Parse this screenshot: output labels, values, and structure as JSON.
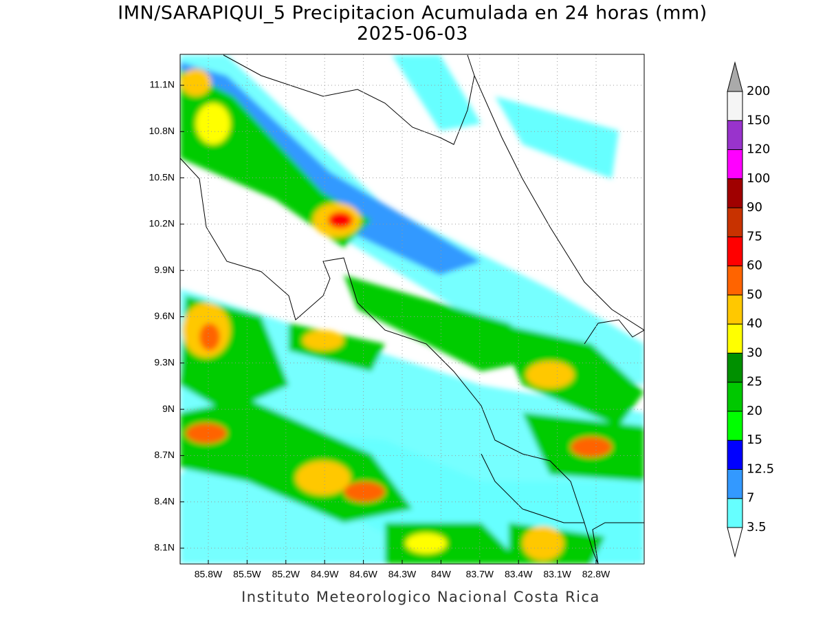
{
  "title": "IMN/SARAPIQUI_5 Precipitacion Acumulada en 24 horas (mm)",
  "subtitle": "2025-06-03",
  "footer": "Instituto Meteorologico Nacional Costa Rica",
  "map": {
    "lat_ticks": [
      "11.1N",
      "10.8N",
      "10.5N",
      "10.2N",
      "9.9N",
      "9.6N",
      "9.3N",
      "9N",
      "8.7N",
      "8.4N",
      "8.1N"
    ],
    "lon_ticks": [
      "85.8W",
      "85.5W",
      "85.2W",
      "84.9W",
      "84.6W",
      "84.3W",
      "84W",
      "83.7W",
      "83.4W",
      "83.1W",
      "82.8W"
    ]
  },
  "colorbar": {
    "levels": [
      3.5,
      7,
      12.5,
      15,
      20,
      25,
      30,
      40,
      50,
      60,
      75,
      90,
      100,
      120,
      150,
      200
    ],
    "colors": [
      "#ffffff",
      "#66ffff",
      "#3399ff",
      "#0000ff",
      "#00ff00",
      "#00c800",
      "#009000",
      "#ffff00",
      "#ffc800",
      "#ff6400",
      "#ff0000",
      "#c83200",
      "#a00000",
      "#ff00ff",
      "#9933cc",
      "#f5f5f5",
      "#aaaaaa"
    ]
  }
}
